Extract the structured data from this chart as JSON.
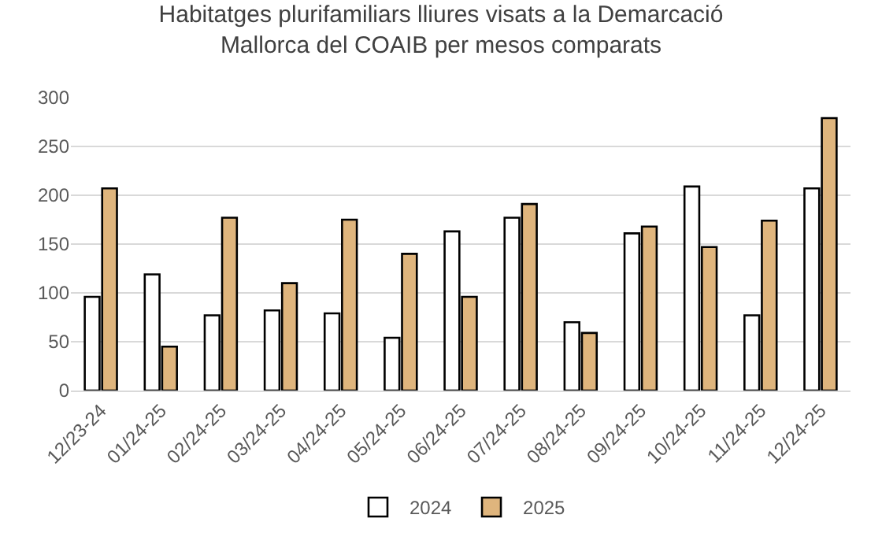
{
  "chart_data": {
    "type": "bar",
    "title": "Habitatges plurifamiliars lliures visats a la Demarcació\nMallorca del COAIB per mesos comparats",
    "categories": [
      "12/23-24",
      "01/24-25",
      "02/24-25",
      "03/24-25",
      "04/24-25",
      "05/24-25",
      "06/24-25",
      "07/24-25",
      "08/24-25",
      "09/24-25",
      "10/24-25",
      "11/24-25",
      "12/24-25"
    ],
    "series": [
      {
        "name": "2024",
        "color": "#ffffff",
        "values": [
          96,
          119,
          77,
          82,
          79,
          54,
          163,
          177,
          70,
          161,
          209,
          77,
          207
        ]
      },
      {
        "name": "2025",
        "color": "#dfb57d",
        "values": [
          207,
          45,
          177,
          110,
          175,
          140,
          96,
          191,
          59,
          168,
          147,
          174,
          279
        ]
      }
    ],
    "ylim": [
      0,
      300
    ],
    "yticks": [
      0,
      50,
      100,
      150,
      200,
      250,
      300
    ],
    "grid": "y",
    "legend": "bottom"
  }
}
